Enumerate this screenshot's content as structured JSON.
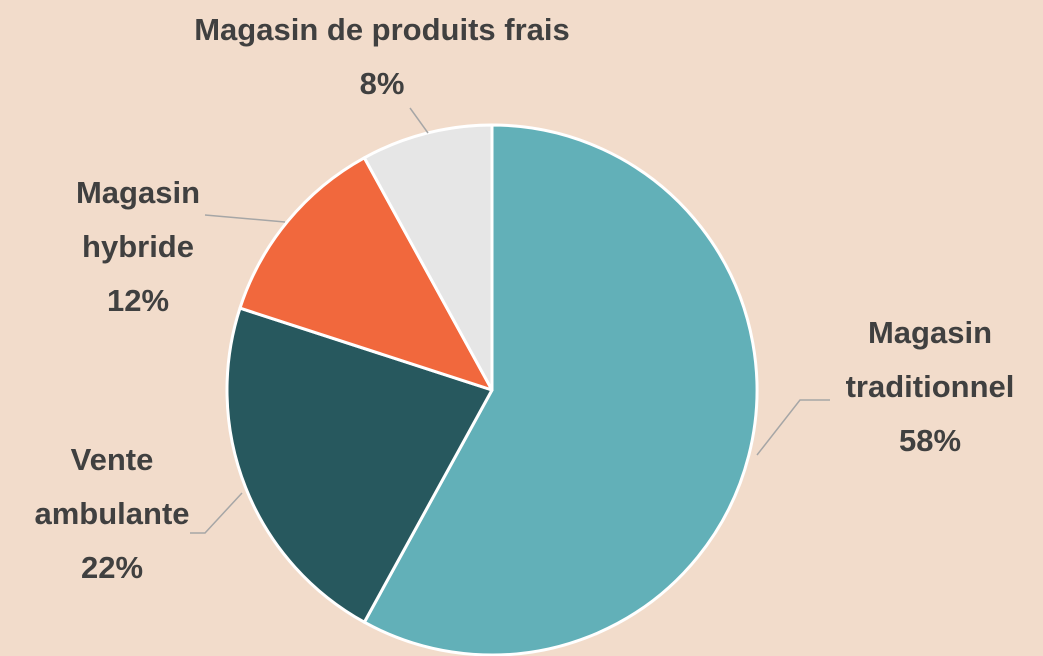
{
  "chart_data": {
    "type": "pie",
    "categories": [
      "Magasin traditionnel",
      "Vente ambulante",
      "Magasin hybride",
      "Magasin de produits frais"
    ],
    "values": [
      58,
      22,
      12,
      8
    ],
    "value_labels": [
      "58%",
      "22%",
      "12%",
      "8%"
    ],
    "colors": [
      "#62b0b8",
      "#27585e",
      "#f1683d",
      "#e6e6e6"
    ]
  }
}
